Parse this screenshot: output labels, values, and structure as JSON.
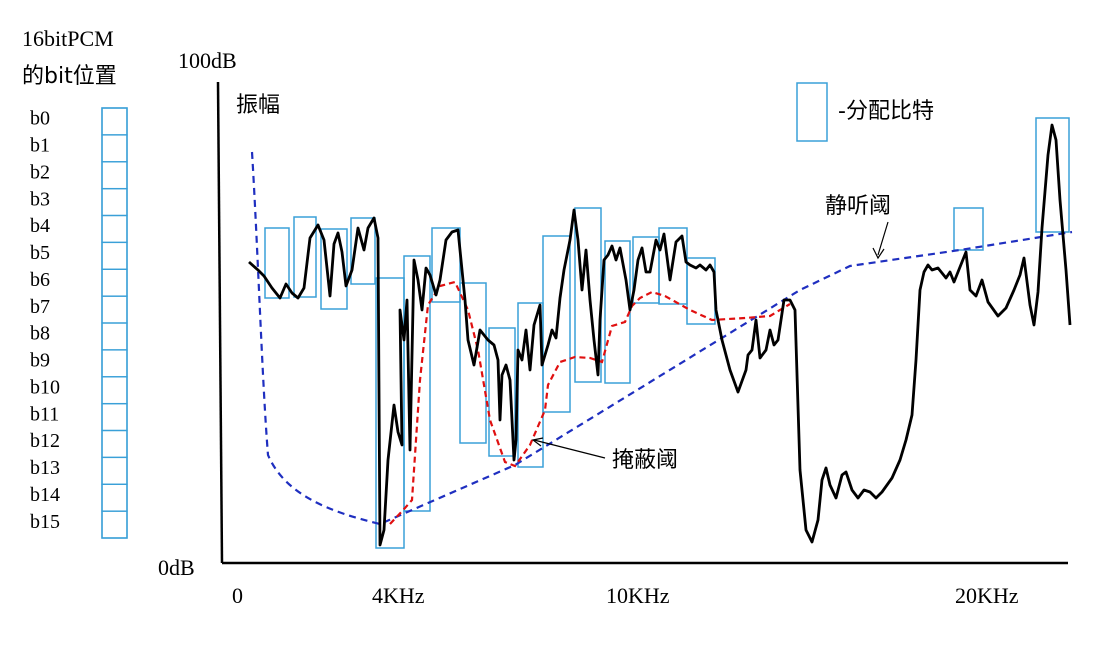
{
  "header": {
    "line1": "16bitPCM",
    "line2": "的bit位置"
  },
  "bits": [
    "b0",
    "b1",
    "b2",
    "b3",
    "b4",
    "b5",
    "b6",
    "b7",
    "b8",
    "b9",
    "b10",
    "b11",
    "b12",
    "b13",
    "b14",
    "b15"
  ],
  "axis": {
    "y_top": "100dB",
    "y_bottom": "0dB",
    "y_name": "振幅",
    "x_ticks": [
      "0",
      "4KHz",
      "10KHz",
      "20KHz"
    ]
  },
  "legend": {
    "label": "-分配比特"
  },
  "annotations": {
    "quiet_threshold": "静听阈",
    "masking_threshold": "掩蔽阈"
  },
  "colors": {
    "signal": "#000000",
    "quiet": "#1f2fc0",
    "masking": "#e01010",
    "box": "#3aa0d8"
  }
}
